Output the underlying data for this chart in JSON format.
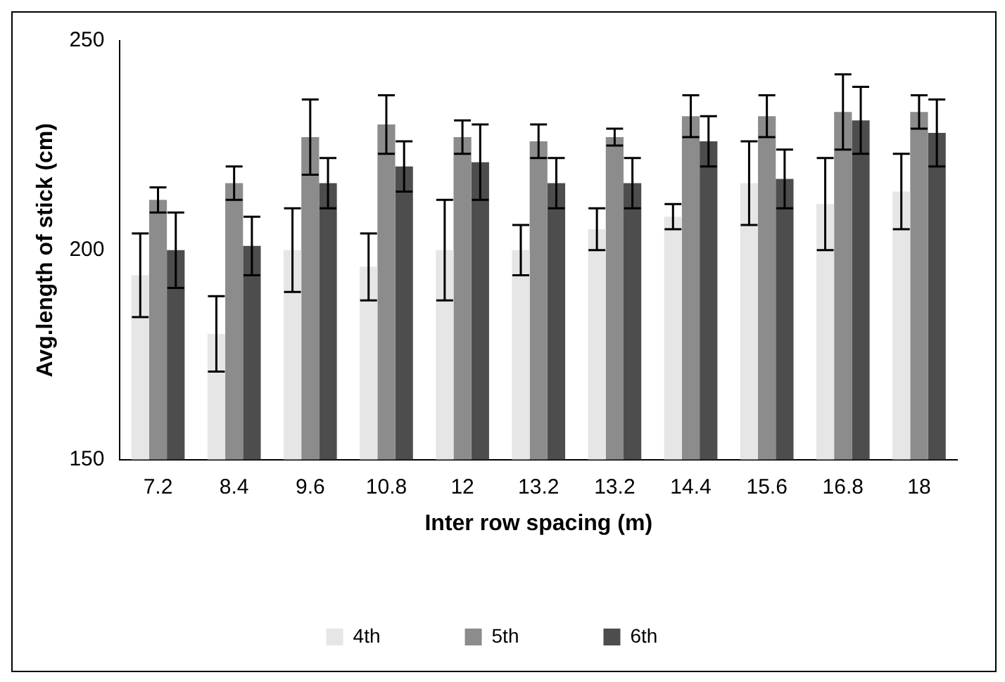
{
  "chart_data": {
    "type": "bar",
    "xlabel": "Inter row spacing (m)",
    "ylabel": "Avg.length of stick (cm)",
    "categories": [
      "7.2",
      "8.4",
      "9.6",
      "10.8",
      "12",
      "13.2",
      "13.2",
      "14.4",
      "15.6",
      "16.8",
      "18"
    ],
    "series": [
      {
        "name": "4th",
        "color": "#e6e6e6",
        "values": [
          194,
          180,
          200,
          196,
          200,
          200,
          205,
          208,
          216,
          211,
          214
        ],
        "errors": [
          10,
          9,
          10,
          8,
          12,
          6,
          5,
          3,
          10,
          11,
          9
        ]
      },
      {
        "name": "5th",
        "color": "#8c8c8c",
        "values": [
          212,
          216,
          227,
          230,
          227,
          226,
          227,
          232,
          232,
          233,
          233
        ],
        "errors": [
          3,
          4,
          9,
          7,
          4,
          4,
          2,
          5,
          5,
          9,
          4
        ]
      },
      {
        "name": "6th",
        "color": "#4d4d4d",
        "values": [
          200,
          201,
          216,
          220,
          221,
          216,
          216,
          226,
          217,
          231,
          228
        ],
        "errors": [
          9,
          7,
          6,
          6,
          9,
          6,
          6,
          6,
          7,
          8,
          8
        ]
      }
    ],
    "ylim": [
      150,
      250
    ],
    "yticks": [
      150,
      200,
      250
    ],
    "grid": false,
    "legend": "bottom"
  }
}
